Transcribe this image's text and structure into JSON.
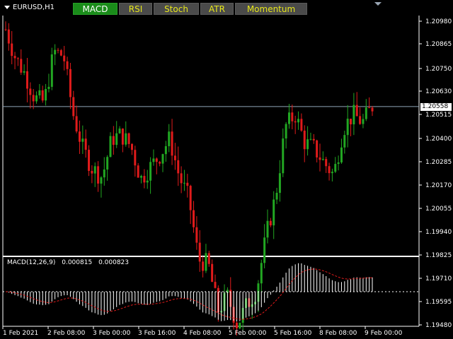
{
  "chart": {
    "symbol_label": "EURUSD,H1",
    "tabs": [
      {
        "label": "MACD",
        "active": true
      },
      {
        "label": "RSI",
        "active": false
      },
      {
        "label": "Stoch",
        "active": false
      },
      {
        "label": "ATR",
        "active": false
      },
      {
        "label": "Momentum",
        "active": false
      }
    ],
    "price_axis": [
      "1.20980",
      "1.20865",
      "1.20750",
      "1.20630",
      "1.20515",
      "1.20400",
      "1.20285",
      "1.20170",
      "1.20055",
      "1.19940"
    ],
    "current_price": "1.20558",
    "macd_label": "MACD(12,26,9)",
    "macd_value": "0.000815",
    "signal_value": "0.000823",
    "macd_axis": [
      "1.19825",
      "1.19710",
      "1.19595",
      "1.19480"
    ],
    "time_axis": [
      "1 Feb 2021",
      "2 Feb 08:00",
      "3 Feb 00:00",
      "3 Feb 16:00",
      "4 Feb 08:00",
      "5 Feb 00:00",
      "5 Feb 16:00",
      "8 Feb 08:00",
      "9 Feb 00:00"
    ],
    "colors": {
      "bull": "#22a722",
      "bear": "#e01b1b",
      "grid": "#ffffff",
      "bid_line": "#8fa7b8",
      "histogram": "#ffffff",
      "signal_line": "#e01b1b",
      "tab_active": "#1a8c1a",
      "tab_text": "#e8e81a"
    }
  },
  "chart_data": {
    "type": "candlestick",
    "symbol": "EURUSD",
    "timeframe": "H1",
    "x": [
      "1 Feb 2021",
      "2 Feb 08:00",
      "3 Feb 00:00",
      "3 Feb 16:00",
      "4 Feb 08:00",
      "5 Feb 00:00",
      "5 Feb 16:00",
      "8 Feb 08:00",
      "9 Feb 00:00"
    ],
    "close_path": [
      1.2094,
      1.208,
      1.2072,
      1.206,
      1.2058,
      1.2083,
      1.2081,
      1.2052,
      1.2035,
      1.2025,
      1.2021,
      1.204,
      1.2042,
      1.2036,
      1.202,
      1.2026,
      1.2032,
      1.204,
      1.2021,
      1.201,
      1.198,
      1.1978,
      1.1955,
      1.1962,
      1.1948,
      1.1958,
      1.1965,
      1.1992,
      1.2012,
      1.2046,
      1.2052,
      1.2038,
      1.2035,
      1.2028,
      1.2022,
      1.2045,
      1.2052,
      1.2048,
      1.2056
    ],
    "ylim": [
      1.1948,
      1.2098
    ],
    "current_price": 1.20558,
    "macd_panel": {
      "label": "MACD(12,26,9)",
      "macd": 0.000815,
      "signal": 0.000823
    }
  }
}
